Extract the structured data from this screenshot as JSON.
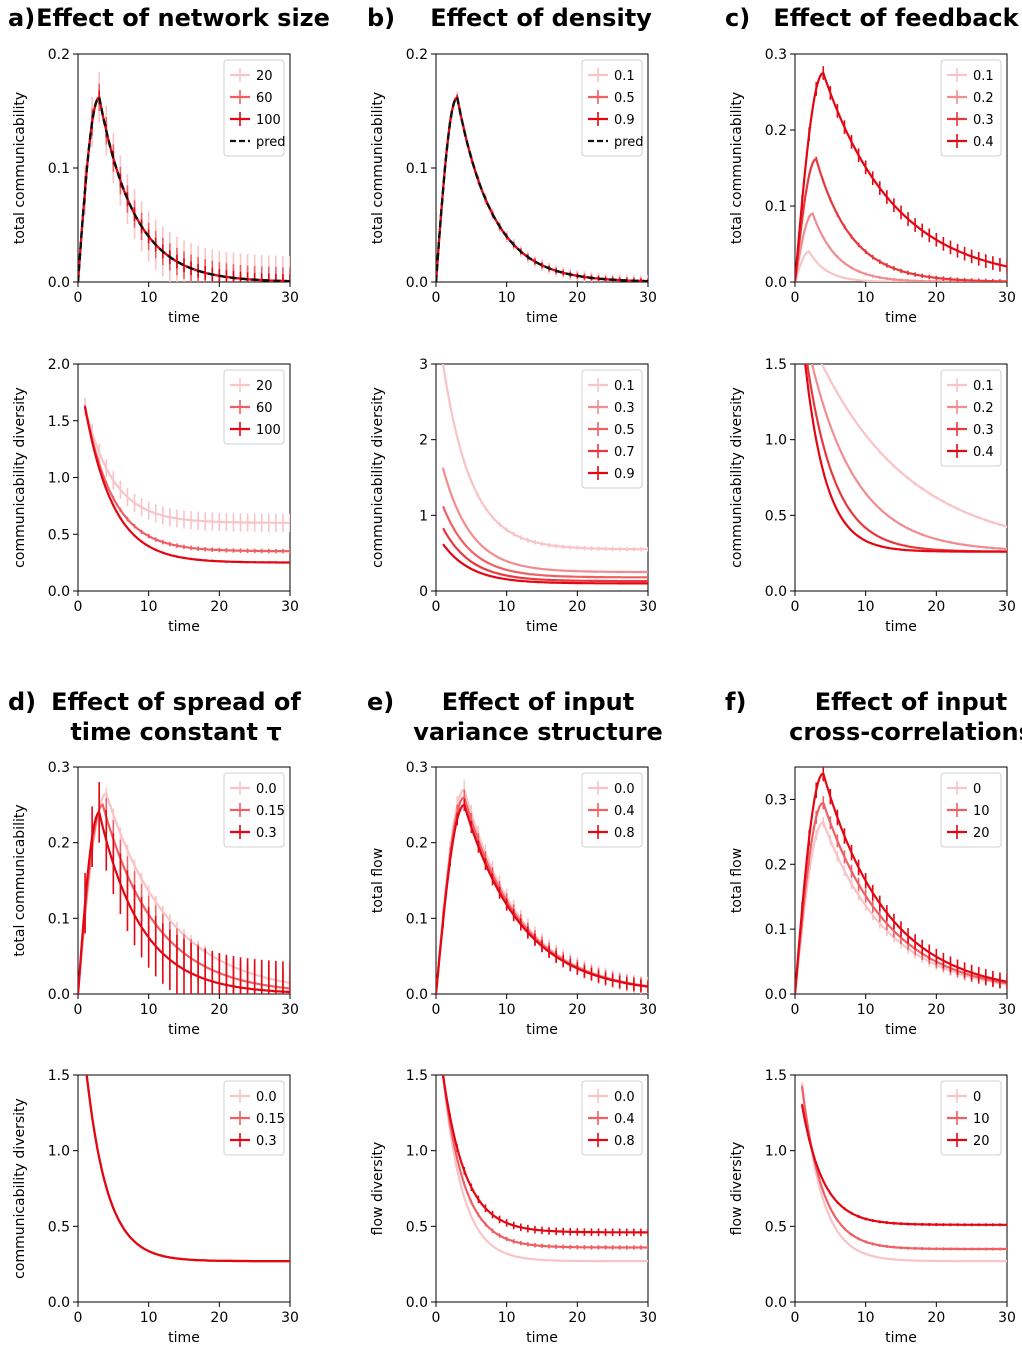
{
  "colors": {
    "c1": "#f8c4c6",
    "c2": "#f18c8f",
    "c3": "#ee6064",
    "c4": "#e8383d",
    "c5": "#e30613",
    "pred": "#111111"
  },
  "groups": [
    {
      "letter": "a)",
      "title": [
        "Effect of network size"
      ]
    },
    {
      "letter": "b)",
      "title": [
        "Effect of density"
      ]
    },
    {
      "letter": "c)",
      "title": [
        "Effect of feedback"
      ]
    },
    {
      "letter": "d)",
      "title": [
        "Effect of spread of",
        "time constant τ"
      ]
    },
    {
      "letter": "e)",
      "title": [
        "Effect of input",
        "variance structure"
      ]
    },
    {
      "letter": "f)",
      "title": [
        "Effect of input",
        "cross-correlations"
      ]
    }
  ],
  "chart_data": [
    {
      "id": "a1",
      "type": "line",
      "xlabel": "time",
      "ylabel": "total communicability",
      "xlim": [
        0,
        30
      ],
      "ylim": [
        0,
        0.2
      ],
      "yticks": [
        "0.0",
        "0.1",
        "0.2"
      ],
      "xticks": [
        "0",
        "10",
        "20",
        "30"
      ],
      "legend": "top-right",
      "series": [
        {
          "name": "20",
          "shape": "pulse",
          "peak": 0.162,
          "tp": 3,
          "tau": 5,
          "err": 0.022
        },
        {
          "name": "60",
          "shape": "pulse",
          "peak": 0.162,
          "tp": 3,
          "tau": 5,
          "err": 0.012
        },
        {
          "name": "100",
          "shape": "pulse",
          "peak": 0.162,
          "tp": 3,
          "tau": 5,
          "err": 0.006
        },
        {
          "name": "pred",
          "shape": "pulse",
          "peak": 0.162,
          "tp": 3,
          "tau": 5,
          "dashed": true
        }
      ]
    },
    {
      "id": "b1",
      "type": "line",
      "xlabel": "time",
      "ylabel": "total communicability",
      "xlim": [
        0,
        30
      ],
      "ylim": [
        0,
        0.2
      ],
      "yticks": [
        "0.0",
        "0.1",
        "0.2"
      ],
      "xticks": [
        "0",
        "10",
        "20",
        "30"
      ],
      "legend": "top-right",
      "series": [
        {
          "name": "0.1",
          "shape": "pulse",
          "peak": 0.162,
          "tp": 3,
          "tau": 5,
          "err": 0.005
        },
        {
          "name": "0.5",
          "shape": "pulse",
          "peak": 0.162,
          "tp": 3,
          "tau": 5,
          "err": 0.003
        },
        {
          "name": "0.9",
          "shape": "pulse",
          "peak": 0.162,
          "tp": 3,
          "tau": 5,
          "err": 0.002
        },
        {
          "name": "pred",
          "shape": "pulse",
          "peak": 0.162,
          "tp": 3,
          "tau": 5,
          "dashed": true
        }
      ]
    },
    {
      "id": "c1",
      "type": "line",
      "xlabel": "time",
      "ylabel": "total communicability",
      "xlim": [
        0,
        30
      ],
      "ylim": [
        0,
        0.3
      ],
      "yticks": [
        "0.0",
        "0.1",
        "0.2",
        "0.3"
      ],
      "xticks": [
        "0",
        "10",
        "20",
        "30"
      ],
      "legend": "top-right",
      "series": [
        {
          "name": "0.1",
          "shape": "pulse",
          "peak": 0.04,
          "tp": 2,
          "tau": 2.5,
          "err": 0
        },
        {
          "name": "0.2",
          "shape": "pulse",
          "peak": 0.09,
          "tp": 2.5,
          "tau": 3.5,
          "err": 0.002
        },
        {
          "name": "0.3",
          "shape": "pulse",
          "peak": 0.162,
          "tp": 3,
          "tau": 5,
          "err": 0.003
        },
        {
          "name": "0.4",
          "shape": "pulse",
          "peak": 0.275,
          "tp": 4,
          "tau": 10,
          "err": 0.009
        }
      ]
    },
    {
      "id": "a2",
      "type": "line",
      "xlabel": "time",
      "ylabel": "communicability diversity",
      "xlim": [
        0,
        30
      ],
      "ylim": [
        0,
        2.0
      ],
      "yticks": [
        "0.0",
        "0.5",
        "1.0",
        "1.5",
        "2.0"
      ],
      "xticks": [
        "0",
        "10",
        "20",
        "30"
      ],
      "legend": "top-right",
      "series": [
        {
          "name": "20",
          "shape": "decay",
          "y0": 1.62,
          "yinf": 0.6,
          "tau": 4,
          "err": 0.08
        },
        {
          "name": "60",
          "shape": "decay",
          "y0": 1.62,
          "yinf": 0.35,
          "tau": 4,
          "err": 0.02
        },
        {
          "name": "100",
          "shape": "decay",
          "y0": 1.62,
          "yinf": 0.25,
          "tau": 4,
          "err": 0.01
        }
      ]
    },
    {
      "id": "b2",
      "type": "line",
      "xlabel": "time",
      "ylabel": "communicability diversity",
      "xlim": [
        0,
        30
      ],
      "ylim": [
        0,
        3
      ],
      "yticks": [
        "0",
        "1",
        "2",
        "3"
      ],
      "xticks": [
        "0",
        "10",
        "20",
        "30"
      ],
      "legend": "top-right",
      "series": [
        {
          "name": "0.1",
          "shape": "decay",
          "y0": 3.0,
          "yinf": 0.55,
          "tau": 4,
          "err": 0.03
        },
        {
          "name": "0.3",
          "shape": "decay",
          "y0": 1.62,
          "yinf": 0.25,
          "tau": 4,
          "err": 0.01
        },
        {
          "name": "0.5",
          "shape": "decay",
          "y0": 1.12,
          "yinf": 0.18,
          "tau": 4,
          "err": 0
        },
        {
          "name": "0.7",
          "shape": "decay",
          "y0": 0.83,
          "yinf": 0.13,
          "tau": 4,
          "err": 0
        },
        {
          "name": "0.9",
          "shape": "decay",
          "y0": 0.62,
          "yinf": 0.1,
          "tau": 4,
          "err": 0
        }
      ]
    },
    {
      "id": "c2",
      "type": "line",
      "xlabel": "time",
      "ylabel": "communicability diversity",
      "xlim": [
        0,
        30
      ],
      "ylim": [
        0,
        1.5
      ],
      "yticks": [
        "0.0",
        "0.5",
        "1.0",
        "1.5"
      ],
      "xticks": [
        "0",
        "10",
        "20",
        "30"
      ],
      "legend": "top-right",
      "series": [
        {
          "name": "0.1",
          "shape": "decay",
          "y0": 1.8,
          "yinf": 0.26,
          "tau": 13,
          "err": 0.01
        },
        {
          "name": "0.2",
          "shape": "decay",
          "y0": 1.8,
          "yinf": 0.26,
          "tau": 6.5,
          "err": 0.008
        },
        {
          "name": "0.3",
          "shape": "decay",
          "y0": 1.75,
          "yinf": 0.26,
          "tau": 4,
          "err": 0.005
        },
        {
          "name": "0.4",
          "shape": "decay",
          "y0": 1.7,
          "yinf": 0.26,
          "tau": 3,
          "err": 0.005
        }
      ]
    },
    {
      "id": "d1",
      "type": "line",
      "xlabel": "time",
      "ylabel": "total communicability",
      "xlim": [
        0,
        30
      ],
      "ylim": [
        0,
        0.3
      ],
      "yticks": [
        "0.0",
        "0.1",
        "0.2",
        "0.3"
      ],
      "xticks": [
        "0",
        "10",
        "20",
        "30"
      ],
      "legend": "top-right",
      "series": [
        {
          "name": "0.0",
          "shape": "pulse",
          "peak": 0.265,
          "tp": 4,
          "tau": 9,
          "err": 0.008
        },
        {
          "name": "0.15",
          "shape": "pulse",
          "peak": 0.25,
          "tp": 3.5,
          "tau": 7.5,
          "err": 0.025
        },
        {
          "name": "0.3",
          "shape": "pulse",
          "peak": 0.24,
          "tp": 3,
          "tau": 6,
          "err": 0.04
        }
      ]
    },
    {
      "id": "e1",
      "type": "line",
      "xlabel": "time",
      "ylabel": "total flow",
      "xlim": [
        0,
        30
      ],
      "ylim": [
        0,
        0.3
      ],
      "yticks": [
        "0.0",
        "0.1",
        "0.2",
        "0.3"
      ],
      "xticks": [
        "0",
        "10",
        "20",
        "30"
      ],
      "legend": "top-right",
      "series": [
        {
          "name": "0.0",
          "shape": "pulse",
          "peak": 0.27,
          "tp": 4,
          "tau": 8,
          "err": 0.012
        },
        {
          "name": "0.4",
          "shape": "pulse",
          "peak": 0.26,
          "tp": 4,
          "tau": 8,
          "err": 0.01
        },
        {
          "name": "0.8",
          "shape": "pulse",
          "peak": 0.25,
          "tp": 4,
          "tau": 8,
          "err": 0.008
        }
      ]
    },
    {
      "id": "f1",
      "type": "line",
      "xlabel": "time",
      "ylabel": "total flow",
      "xlim": [
        0,
        30
      ],
      "ylim": [
        0,
        0.35
      ],
      "yticks": [
        "0.0",
        "0.1",
        "0.2",
        "0.3"
      ],
      "xticks": [
        "0",
        "10",
        "20",
        "30"
      ],
      "legend": "top-right",
      "series": [
        {
          "name": "0",
          "shape": "pulse",
          "peak": 0.265,
          "tp": 4,
          "tau": 9,
          "err": 0.008
        },
        {
          "name": "10",
          "shape": "pulse",
          "peak": 0.295,
          "tp": 4,
          "tau": 9,
          "err": 0.01
        },
        {
          "name": "20",
          "shape": "pulse",
          "peak": 0.34,
          "tp": 4,
          "tau": 9,
          "err": 0.012
        }
      ]
    },
    {
      "id": "d2",
      "type": "line",
      "xlabel": "time",
      "ylabel": "communicability diversity",
      "xlim": [
        0,
        30
      ],
      "ylim": [
        0,
        1.5
      ],
      "yticks": [
        "0.0",
        "0.5",
        "1.0",
        "1.5"
      ],
      "xticks": [
        "0",
        "10",
        "20",
        "30"
      ],
      "legend": "top-right",
      "series": [
        {
          "name": "0.0",
          "shape": "decay",
          "y0": 1.6,
          "yinf": 0.27,
          "tau": 3,
          "err": 0
        },
        {
          "name": "0.15",
          "shape": "decay",
          "y0": 1.6,
          "yinf": 0.27,
          "tau": 3,
          "err": 0
        },
        {
          "name": "0.3",
          "shape": "decay",
          "y0": 1.6,
          "yinf": 0.27,
          "tau": 3,
          "err": 0.005
        }
      ]
    },
    {
      "id": "e2",
      "type": "line",
      "xlabel": "time",
      "ylabel": "flow diversity",
      "xlim": [
        0,
        30
      ],
      "ylim": [
        0,
        1.5
      ],
      "yticks": [
        "0.0",
        "0.5",
        "1.0",
        "1.5"
      ],
      "xticks": [
        "0",
        "10",
        "20",
        "30"
      ],
      "legend": "top-right",
      "series": [
        {
          "name": "0.0",
          "shape": "decay",
          "y0": 1.5,
          "yinf": 0.27,
          "tau": 2.8,
          "err": 0
        },
        {
          "name": "0.4",
          "shape": "decay",
          "y0": 1.5,
          "yinf": 0.36,
          "tau": 3,
          "err": 0.015
        },
        {
          "name": "0.8",
          "shape": "decay",
          "y0": 1.5,
          "yinf": 0.46,
          "tau": 3.2,
          "err": 0.025
        }
      ]
    },
    {
      "id": "f2",
      "type": "line",
      "xlabel": "time",
      "ylabel": "flow diversity",
      "xlim": [
        0,
        30
      ],
      "ylim": [
        0,
        1.5
      ],
      "yticks": [
        "0.0",
        "0.5",
        "1.0",
        "1.5"
      ],
      "xticks": [
        "0",
        "10",
        "20",
        "30"
      ],
      "legend": "top-right",
      "series": [
        {
          "name": "0",
          "shape": "decay",
          "y0": 1.45,
          "yinf": 0.27,
          "tau": 2.8,
          "err": 0
        },
        {
          "name": "10",
          "shape": "decay",
          "y0": 1.42,
          "yinf": 0.35,
          "tau": 2.9,
          "err": 0.01
        },
        {
          "name": "20",
          "shape": "decay",
          "y0": 1.3,
          "yinf": 0.51,
          "tau": 3.0,
          "err": 0.01
        }
      ]
    }
  ]
}
